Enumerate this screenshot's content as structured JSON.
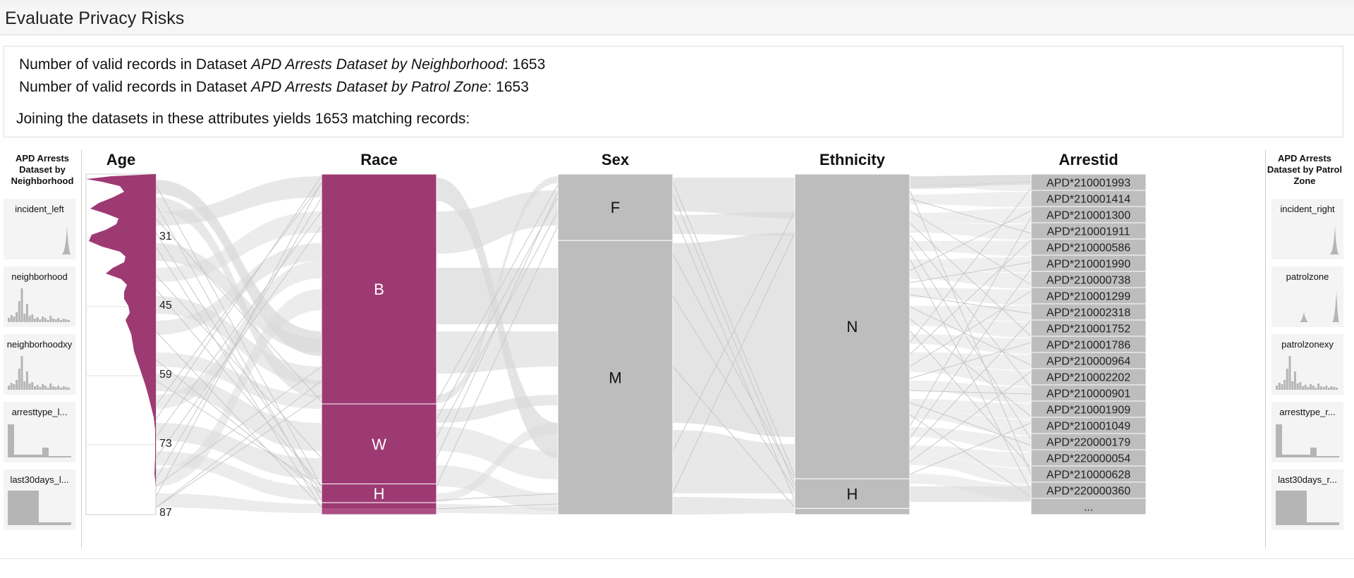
{
  "page": {
    "title": "Evaluate Privacy Risks"
  },
  "info": {
    "line1_prefix": "Number of valid records in Dataset ",
    "line1_dataset": "APD Arrests Dataset by Neighborhood",
    "line1_suffix": ": 1653",
    "line2_prefix": "Number of valid records in Dataset ",
    "line2_dataset": "APD Arrests Dataset by Patrol Zone",
    "line2_suffix": ": 1653",
    "join_text": "Joining the datasets in these attributes yields 1653 matching records:"
  },
  "left_panel": {
    "title": "APD Arrests Dataset by Neighborhood",
    "attributes": [
      {
        "label": "incident_left",
        "hist": "spike-right"
      },
      {
        "label": "neighborhood",
        "hist": "many-bars"
      },
      {
        "label": "neighborhoodxy",
        "hist": "many-bars"
      },
      {
        "label": "arresttype_l...",
        "hist": "two-bars"
      },
      {
        "label": "last30days_l...",
        "hist": "one-block"
      }
    ]
  },
  "right_panel": {
    "title": "APD Arrests Dataset by Patrol Zone",
    "attributes": [
      {
        "label": "incident_right",
        "hist": "spike-right"
      },
      {
        "label": "patrolzone",
        "hist": "two-spikes"
      },
      {
        "label": "patrolzonexy",
        "hist": "many-bars"
      },
      {
        "label": "arresttype_r...",
        "hist": "two-bars"
      },
      {
        "label": "last30days_r...",
        "hist": "one-block"
      }
    ]
  },
  "axes": {
    "age": {
      "title": "Age",
      "ticks": [
        "31",
        "45",
        "59",
        "73",
        "87"
      ]
    },
    "race": {
      "title": "Race",
      "categories": [
        {
          "label": "B",
          "share": 0.675
        },
        {
          "label": "W",
          "share": 0.235
        },
        {
          "label": "H",
          "share": 0.055
        },
        {
          "label": "",
          "share": 0.035
        }
      ]
    },
    "sex": {
      "title": "Sex",
      "categories": [
        {
          "label": "F",
          "share": 0.195
        },
        {
          "label": "M",
          "share": 0.805
        }
      ]
    },
    "ethnicity": {
      "title": "Ethnicity",
      "categories": [
        {
          "label": "N",
          "share": 0.895
        },
        {
          "label": "H",
          "share": 0.087
        },
        {
          "label": "",
          "share": 0.018
        }
      ]
    },
    "arrestid": {
      "title": "Arrestid",
      "ids": [
        "APD*210001993",
        "APD*210001414",
        "APD*210001300",
        "APD*210001911",
        "APD*210000586",
        "APD*210001990",
        "APD*210000738",
        "APD*210001299",
        "APD*210002318",
        "APD*210001752",
        "APD*210001786",
        "APD*210000964",
        "APD*210002202",
        "APD*210000901",
        "APD*210001909",
        "APD*210001049",
        "APD*220000179",
        "APD*220000054",
        "APD*210000628",
        "APD*220000360"
      ],
      "more": "..."
    }
  },
  "colors": {
    "highlight": "#9e3a73",
    "category_gray": "#bdbdbd",
    "ribbon": "#d9d9d9"
  }
}
